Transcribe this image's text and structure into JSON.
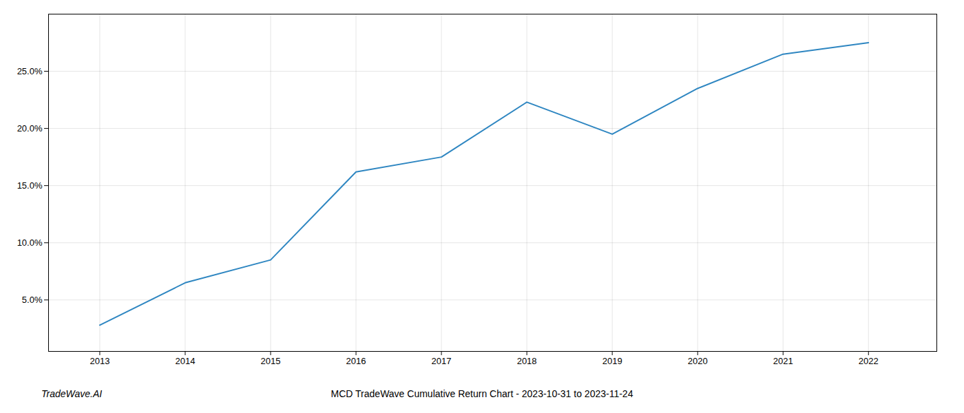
{
  "chart_data": {
    "type": "line",
    "title": "MCD TradeWave Cumulative Return Chart - 2023-10-31 to 2023-11-24",
    "annotations": [
      "TradeWave.AI"
    ],
    "x": [
      2013,
      2014,
      2015,
      2016,
      2017,
      2018,
      2019,
      2020,
      2021,
      2022
    ],
    "values": [
      2.8,
      6.5,
      8.5,
      16.2,
      17.5,
      22.3,
      19.5,
      23.5,
      26.5,
      27.5
    ],
    "color": "#2e86c1",
    "xlim": [
      2012.4,
      2022.8
    ],
    "xticks": [
      2013,
      2014,
      2015,
      2016,
      2017,
      2018,
      2019,
      2020,
      2021,
      2022
    ],
    "ylim": [
      0.5,
      30
    ],
    "yticks": [
      {
        "value": 5.0,
        "label": "5.0%"
      },
      {
        "value": 10.0,
        "label": "10.0%"
      },
      {
        "value": 15.0,
        "label": "15.0%"
      },
      {
        "value": 20.0,
        "label": "20.0%"
      },
      {
        "value": 25.0,
        "label": "25.0%"
      }
    ],
    "grid": true
  }
}
